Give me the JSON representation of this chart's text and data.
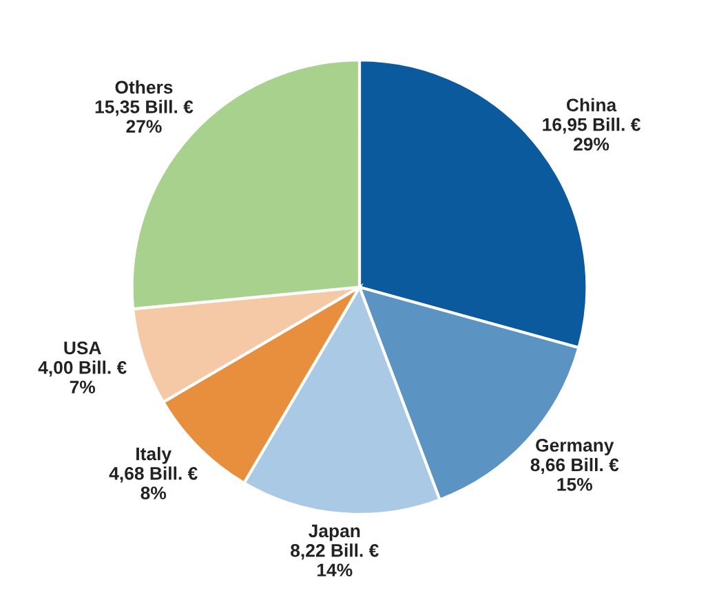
{
  "chart_data": {
    "type": "pie",
    "categories": [
      "China",
      "Germany",
      "Japan",
      "Italy",
      "USA",
      "Others"
    ],
    "values": [
      16.95,
      8.66,
      8.22,
      4.68,
      4.0,
      15.35
    ],
    "colors": [
      "#0b5a9e",
      "#5b93c3",
      "#a9c9e4",
      "#e88f3e",
      "#f5c9a6",
      "#a8d18d"
    ],
    "value_labels": [
      "16,95 Bill. €\n29%",
      "8,66 Bill. €\n15%",
      "8,22 Bill. €\n14%",
      "4,68 Bill. €\n8%",
      "4,00 Bill. €\n7%",
      "15,35 Bill. €\n27%"
    ]
  }
}
